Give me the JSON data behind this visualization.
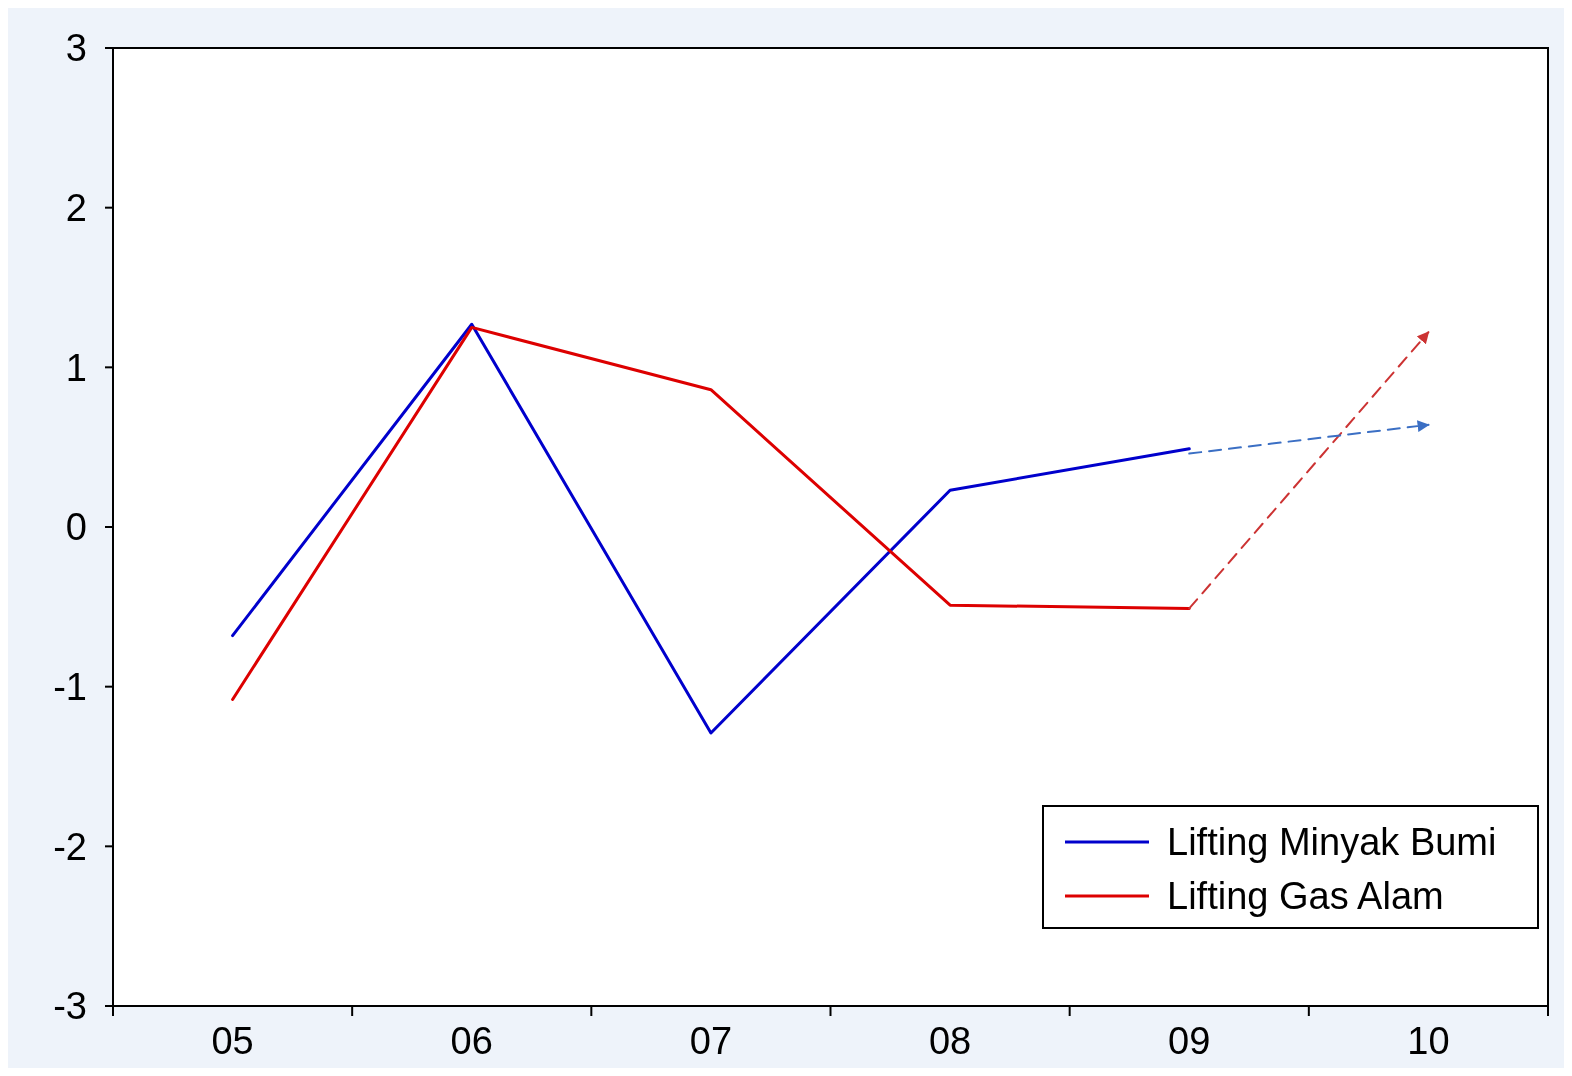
{
  "chart_data": {
    "type": "line",
    "categories": [
      "05",
      "06",
      "07",
      "08",
      "09",
      "10"
    ],
    "series": [
      {
        "name": "Lifting Minyak Bumi",
        "color": "#0000cc",
        "values": [
          -0.68,
          1.27,
          -1.29,
          0.23,
          0.49,
          null
        ]
      },
      {
        "name": "Lifting Gas Alam",
        "color": "#dd0000",
        "values": [
          -1.08,
          1.25,
          0.86,
          -0.49,
          -0.51,
          null
        ]
      },
      {
        "color": "#cc3333",
        "line_style": "dashed",
        "values": [
          null,
          null,
          null,
          null,
          -0.51,
          1.22
        ]
      },
      {
        "color": "#3b6fc4",
        "line_style": "dashed",
        "values": [
          null,
          null,
          null,
          null,
          0.46,
          0.64
        ]
      }
    ],
    "ylim": [
      -3,
      3
    ],
    "yticks": [
      -3,
      -2,
      -1,
      0,
      1,
      2,
      3
    ],
    "legend": "bottom right",
    "grid": false,
    "line_style": "solid"
  }
}
